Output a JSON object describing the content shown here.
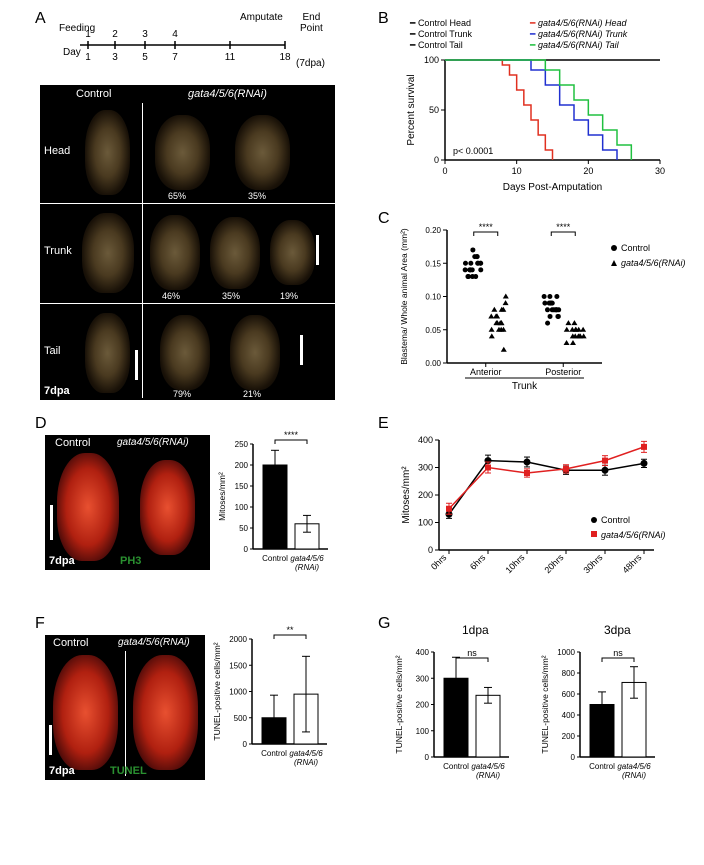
{
  "panelA": {
    "label": "A",
    "timeline": {
      "feeding_label": "Feeding",
      "feedings": [
        "1",
        "2",
        "3",
        "4"
      ],
      "day_label": "Day",
      "days": [
        "1",
        "3",
        "5",
        "7",
        "11",
        "18"
      ],
      "amputate_label": "Amputate",
      "endpoint_label_top": "End",
      "endpoint_label_bot": "Point",
      "dpa_label": "(7dpa)"
    },
    "image": {
      "control_label": "Control",
      "rnai_label": "gata4/5/6(RNAi)",
      "rows": [
        "Head",
        "Trunk",
        "Tail"
      ],
      "head_pcts": [
        "65%",
        "35%"
      ],
      "trunk_pcts": [
        "46%",
        "35%",
        "19%"
      ],
      "tail_pcts": [
        "79%",
        "21%"
      ],
      "corner_label": "7dpa"
    }
  },
  "panelB": {
    "label": "B",
    "legend": {
      "ctrl_head": "Control Head",
      "ctrl_trunk": "Control Trunk",
      "ctrl_tail": "Control Tail",
      "rnai_head": "gata4/5/6(RNAi) Head",
      "rnai_trunk": "gata4/5/6(RNAi) Trunk",
      "rnai_tail": "gata4/5/6(RNAi) Tail",
      "colors": {
        "ctrl": "#000000",
        "rnai_head": "#e03020",
        "rnai_trunk": "#2030d0",
        "rnai_tail": "#20c040"
      }
    },
    "chart": {
      "xlabel": "Days Post-Amputation",
      "ylabel": "Percent survival",
      "ylim": [
        0,
        100
      ],
      "yticks": [
        0,
        50,
        100
      ],
      "xlim": [
        0,
        30
      ],
      "xticks": [
        0,
        10,
        20,
        30
      ],
      "pval": "p< 0.0001",
      "series": {
        "ctrl": [
          [
            0,
            100
          ],
          [
            30,
            100
          ]
        ],
        "rnai_head": [
          [
            0,
            100
          ],
          [
            7,
            100
          ],
          [
            8,
            95
          ],
          [
            9,
            85
          ],
          [
            10,
            70
          ],
          [
            11,
            55
          ],
          [
            12,
            40
          ],
          [
            13,
            25
          ],
          [
            14,
            10
          ],
          [
            15,
            0
          ]
        ],
        "rnai_trunk": [
          [
            0,
            100
          ],
          [
            10,
            100
          ],
          [
            12,
            90
          ],
          [
            14,
            75
          ],
          [
            16,
            55
          ],
          [
            18,
            40
          ],
          [
            20,
            25
          ],
          [
            22,
            10
          ],
          [
            24,
            0
          ]
        ],
        "rnai_tail": [
          [
            0,
            100
          ],
          [
            12,
            100
          ],
          [
            14,
            90
          ],
          [
            16,
            75
          ],
          [
            18,
            60
          ],
          [
            20,
            45
          ],
          [
            22,
            30
          ],
          [
            24,
            15
          ],
          [
            26,
            0
          ]
        ]
      },
      "axis_color": "#000",
      "background": "#ffffff",
      "line_width": 1.5
    }
  },
  "panelC": {
    "label": "C",
    "chart": {
      "ylabel": "Blastema/ Whole animal Area (mm²)",
      "xlabel": "Trunk",
      "groups": [
        "Anterior",
        "Posterior"
      ],
      "ylim": [
        0,
        0.2
      ],
      "yticks": [
        0.0,
        0.05,
        0.1,
        0.15,
        0.2
      ],
      "legend_ctrl": "Control",
      "legend_rnai": "gata4/5/6(RNAi)",
      "marker_ctrl": "circle",
      "color_ctrl": "#000000",
      "marker_rnai": "triangle",
      "color_rnai": "#000000",
      "sig": "****",
      "data": {
        "ant_ctrl": [
          0.16,
          0.15,
          0.15,
          0.14,
          0.14,
          0.14,
          0.15,
          0.16,
          0.13,
          0.14,
          0.15,
          0.16,
          0.13,
          0.15,
          0.14,
          0.17,
          0.13,
          0.14,
          0.15,
          0.13
        ],
        "ant_rnai": [
          0.09,
          0.08,
          0.07,
          0.06,
          0.05,
          0.06,
          0.07,
          0.08,
          0.05,
          0.04,
          0.1,
          0.06,
          0.05,
          0.07,
          0.08,
          0.02,
          0.06,
          0.05,
          0.07,
          0.06
        ],
        "post_ctrl": [
          0.09,
          0.08,
          0.08,
          0.09,
          0.1,
          0.07,
          0.08,
          0.09,
          0.1,
          0.08,
          0.09,
          0.07,
          0.08,
          0.09,
          0.1,
          0.06,
          0.08,
          0.09,
          0.07,
          0.08
        ],
        "post_rnai": [
          0.06,
          0.05,
          0.04,
          0.05,
          0.04,
          0.03,
          0.04,
          0.05,
          0.06,
          0.04,
          0.05,
          0.03,
          0.04,
          0.05,
          0.04,
          0.05
        ]
      }
    }
  },
  "panelD": {
    "label": "D",
    "image": {
      "control_label": "Control",
      "rnai_label": "gata4/5/6(RNAi)",
      "corner_label": "7dpa",
      "channel_label": "PH3"
    },
    "chart": {
      "ylabel": "Mitoses/mm²",
      "ylim": [
        0,
        250
      ],
      "yticks": [
        0,
        50,
        100,
        150,
        200,
        250
      ],
      "xticks": [
        "Control",
        "gata4/5/6\n(RNAi)"
      ],
      "ctrl_mean": 200,
      "ctrl_err": 35,
      "rnai_mean": 60,
      "rnai_err": 20,
      "sig": "****",
      "ctrl_fill": "#000000",
      "rnai_fill": "#ffffff",
      "bar_width": 0.6
    }
  },
  "panelE": {
    "label": "E",
    "chart": {
      "ylabel": "Mitoses/mm²",
      "ylim": [
        0,
        400
      ],
      "yticks": [
        0,
        100,
        200,
        300,
        400
      ],
      "xticks": [
        "0hrs",
        "6hrs",
        "10hrs",
        "20hrs",
        "30hrs",
        "48hrs"
      ],
      "legend_ctrl": "Control",
      "color_ctrl": "#000000",
      "legend_rnai": "gata4/5/6(RNAi)",
      "color_rnai": "#e02020",
      "ctrl_vals": [
        130,
        325,
        320,
        290,
        290,
        315
      ],
      "ctrl_errs": [
        15,
        20,
        18,
        15,
        18,
        15
      ],
      "rnai_vals": [
        150,
        300,
        280,
        295,
        325,
        375
      ],
      "rnai_errs": [
        20,
        20,
        15,
        15,
        18,
        20
      ],
      "marker_size": 5,
      "line_width": 1.5
    }
  },
  "panelF": {
    "label": "F",
    "image": {
      "control_label": "Control",
      "rnai_label": "gata4/5/6(RNAi)",
      "corner_label": "7dpa",
      "channel_label": "TUNEL"
    },
    "chart": {
      "ylabel": "TUNEL-positive cells/mm²",
      "ylim": [
        0,
        2000
      ],
      "yticks": [
        0,
        500,
        1000,
        1500,
        2000
      ],
      "xticks": [
        "Control",
        "gata4/5/6\n(RNAi)"
      ],
      "ctrl_mean": 500,
      "ctrl_err": 430,
      "rnai_mean": 950,
      "rnai_err": 720,
      "sig": "**",
      "ctrl_fill": "#000000",
      "rnai_fill": "#ffffff"
    }
  },
  "panelG": {
    "label": "G",
    "title_1": "1dpa",
    "title_3": "3dpa",
    "chart_common": {
      "ylabel": "TUNEL-positive cells/mm²",
      "xticks": [
        "Control",
        "gata4/5/6\n(RNAi)"
      ],
      "sig": "ns",
      "ctrl_fill": "#000000",
      "rnai_fill": "#ffffff"
    },
    "chart1": {
      "ylim": [
        0,
        400
      ],
      "yticks": [
        0,
        100,
        200,
        300,
        400
      ],
      "ctrl_mean": 300,
      "ctrl_err": 80,
      "rnai_mean": 235,
      "rnai_err": 30
    },
    "chart3": {
      "ylim": [
        0,
        1000
      ],
      "yticks": [
        0,
        200,
        400,
        600,
        800,
        1000
      ],
      "ctrl_mean": 500,
      "ctrl_err": 120,
      "rnai_mean": 710,
      "rnai_err": 150
    }
  }
}
